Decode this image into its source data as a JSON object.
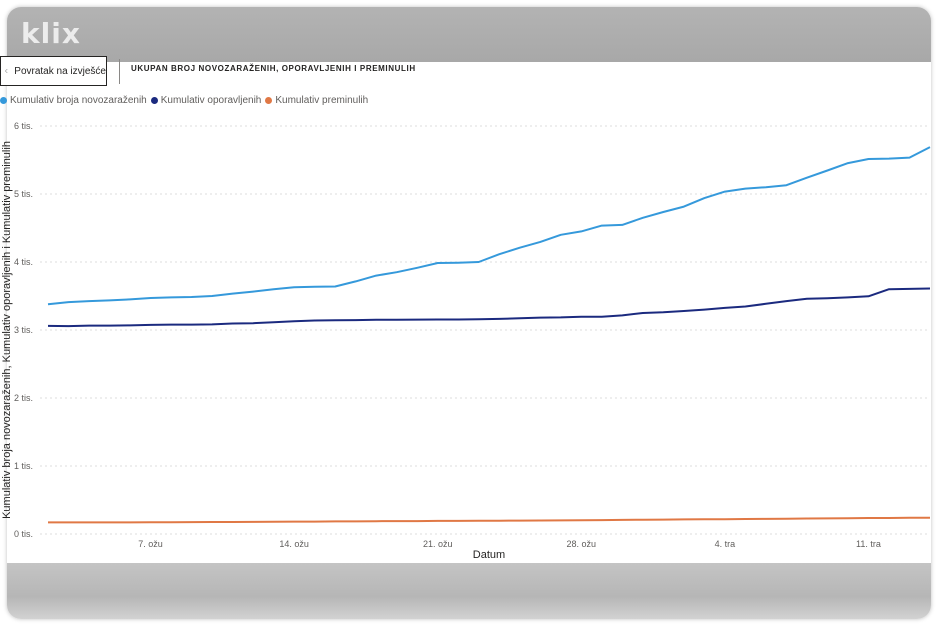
{
  "header": {
    "logo": "klix"
  },
  "toolbar": {
    "back_label": "Povratak na izvješće",
    "page_title": "UKUPAN BROJ NOVOZARAŽENIH, OPORAVLJENIH I PREMINULIH"
  },
  "icons": {
    "back": "chevron-left-icon"
  },
  "colors": {
    "novozarazeni": "#3599DB",
    "oporavljeni": "#1B2A7F",
    "preminuli": "#E07845"
  },
  "chart_data": {
    "type": "line",
    "xlabel": "Datum",
    "ylabel": "Kumulativ broja novozaraženih, Kumulativ oporavljenih i Kumulativ preminulih",
    "ylim": [
      0,
      6000
    ],
    "y_ticks": [
      {
        "value": 0,
        "label": "0 tis."
      },
      {
        "value": 1000,
        "label": "1 tis."
      },
      {
        "value": 2000,
        "label": "2 tis."
      },
      {
        "value": 3000,
        "label": "3 tis."
      },
      {
        "value": 4000,
        "label": "4 tis."
      },
      {
        "value": 5000,
        "label": "5 tis."
      },
      {
        "value": 6000,
        "label": "6 tis."
      }
    ],
    "x_ticks": [
      {
        "value": 7,
        "label": "7. ožu"
      },
      {
        "value": 14,
        "label": "14. ožu"
      },
      {
        "value": 21,
        "label": "21. ožu"
      },
      {
        "value": 28,
        "label": "28. ožu"
      },
      {
        "value": 35,
        "label": "4. tra"
      },
      {
        "value": 42,
        "label": "11. tra"
      }
    ],
    "x": [
      2,
      3,
      4,
      5,
      6,
      7,
      8,
      9,
      10,
      11,
      12,
      13,
      14,
      15,
      16,
      17,
      18,
      19,
      20,
      21,
      22,
      23,
      24,
      25,
      26,
      27,
      28,
      29,
      30,
      31,
      32,
      33,
      34,
      35,
      36,
      37,
      38,
      39,
      40,
      41,
      42,
      43,
      44,
      45
    ],
    "grid": true,
    "legend": "top-left",
    "series": [
      {
        "name": "Kumulativ broja novozaraženih",
        "values": [
          3380,
          3410,
          3425,
          3435,
          3450,
          3470,
          3480,
          3485,
          3500,
          3535,
          3565,
          3600,
          3630,
          3635,
          3640,
          3715,
          3800,
          3850,
          3915,
          3985,
          3990,
          4000,
          4115,
          4210,
          4295,
          4400,
          4450,
          4535,
          4545,
          4650,
          4735,
          4815,
          4940,
          5035,
          5080,
          5100,
          5130,
          5240,
          5345,
          5455,
          5515,
          5520,
          5535,
          5690
        ]
      },
      {
        "name": "Kumulativ oporavljenih",
        "values": [
          3060,
          3058,
          3065,
          3065,
          3068,
          3075,
          3080,
          3080,
          3083,
          3095,
          3100,
          3115,
          3130,
          3140,
          3143,
          3145,
          3150,
          3152,
          3153,
          3155,
          3155,
          3157,
          3163,
          3172,
          3182,
          3185,
          3195,
          3195,
          3215,
          3250,
          3260,
          3280,
          3300,
          3325,
          3345,
          3385,
          3425,
          3460,
          3468,
          3480,
          3495,
          3600,
          3605,
          3610
        ]
      },
      {
        "name": "Kumulativ preminulih",
        "values": [
          170,
          170,
          170,
          170,
          170,
          172,
          173,
          175,
          176,
          177,
          178,
          180,
          182,
          183,
          185,
          186,
          188,
          189,
          190,
          192,
          193,
          194,
          195,
          197,
          198,
          200,
          202,
          205,
          208,
          210,
          212,
          215,
          216,
          218,
          220,
          222,
          225,
          228,
          230,
          232,
          235,
          236,
          238,
          240
        ]
      }
    ]
  }
}
